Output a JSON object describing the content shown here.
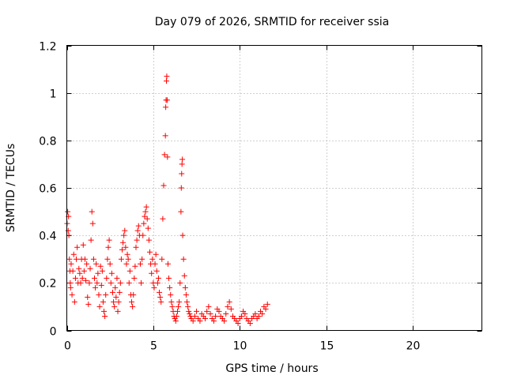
{
  "chart_data": {
    "type": "scatter",
    "title": "Day 079 of 2026, SRMTID for receiver ssia",
    "xlabel": "GPS time / hours",
    "ylabel": "SRMTID / TECUs",
    "xlim": [
      0,
      24
    ],
    "ylim": [
      0,
      1.2
    ],
    "xticks": [
      0,
      5,
      10,
      15,
      20
    ],
    "xtick_labels": [
      "0",
      "5",
      "10",
      "15",
      "20"
    ],
    "yticks": [
      0,
      0.2,
      0.4,
      0.6,
      0.8,
      1,
      1.2
    ],
    "ytick_labels": [
      "0",
      "0.2",
      "0.4",
      "0.6",
      "0.8",
      "1",
      "1.2"
    ],
    "grid": true,
    "marker": "plus",
    "color": "#ff0000",
    "series": [
      {
        "name": "SRMTID",
        "x": [
          0.02,
          0.05,
          0.08,
          0.1,
          0.12,
          0.15,
          0.18,
          0.2,
          0.22,
          0.25,
          0.3,
          0.35,
          0.4,
          0.45,
          0.5,
          0.55,
          0.6,
          0.65,
          0.7,
          0.75,
          0.8,
          0.85,
          0.9,
          0.95,
          1.0,
          1.05,
          1.1,
          1.15,
          1.2,
          1.25,
          1.3,
          1.35,
          1.4,
          1.45,
          1.5,
          1.55,
          1.6,
          1.65,
          1.7,
          1.75,
          1.8,
          1.85,
          1.9,
          1.95,
          2.0,
          2.05,
          2.1,
          2.15,
          2.2,
          2.25,
          2.3,
          2.35,
          2.4,
          2.45,
          2.5,
          2.55,
          2.6,
          2.65,
          2.7,
          2.75,
          2.8,
          2.85,
          2.9,
          2.95,
          3.0,
          3.05,
          3.1,
          3.15,
          3.2,
          3.25,
          3.3,
          3.35,
          3.4,
          3.45,
          3.5,
          3.55,
          3.6,
          3.65,
          3.7,
          3.75,
          3.8,
          3.85,
          3.9,
          3.95,
          4.0,
          4.05,
          4.1,
          4.15,
          4.2,
          4.25,
          4.3,
          4.35,
          4.4,
          4.45,
          4.5,
          4.55,
          4.6,
          4.65,
          4.7,
          4.75,
          4.8,
          4.85,
          4.9,
          4.95,
          5.0,
          5.05,
          5.1,
          5.15,
          5.2,
          5.25,
          5.3,
          5.35,
          5.4,
          5.45,
          5.5,
          5.55,
          5.6,
          5.65,
          5.7,
          5.72,
          5.74,
          5.76,
          5.78,
          5.8,
          5.82,
          5.85,
          5.9,
          5.95,
          6.0,
          6.05,
          6.1,
          6.15,
          6.2,
          6.25,
          6.3,
          6.35,
          6.4,
          6.45,
          6.5,
          6.55,
          6.6,
          6.62,
          6.64,
          6.66,
          6.68,
          6.7,
          6.75,
          6.8,
          6.85,
          6.9,
          6.95,
          7.0,
          7.05,
          7.1,
          7.15,
          7.2,
          7.3,
          7.4,
          7.5,
          7.6,
          7.7,
          7.8,
          7.9,
          8.0,
          8.1,
          8.2,
          8.3,
          8.4,
          8.5,
          8.6,
          8.7,
          8.8,
          8.9,
          9.0,
          9.1,
          9.2,
          9.3,
          9.4,
          9.5,
          9.6,
          9.7,
          9.8,
          9.9,
          10.0,
          10.1,
          10.2,
          10.3,
          10.4,
          10.5,
          10.6,
          10.7,
          10.8,
          10.9,
          11.0,
          11.1,
          11.2,
          11.3,
          11.4,
          11.5,
          11.6
        ],
        "y": [
          0.45,
          0.5,
          0.42,
          0.48,
          0.4,
          0.3,
          0.25,
          0.2,
          0.18,
          0.28,
          0.15,
          0.25,
          0.32,
          0.12,
          0.22,
          0.3,
          0.35,
          0.2,
          0.26,
          0.24,
          0.2,
          0.3,
          0.22,
          0.36,
          0.25,
          0.3,
          0.21,
          0.28,
          0.14,
          0.11,
          0.2,
          0.26,
          0.38,
          0.5,
          0.45,
          0.3,
          0.22,
          0.18,
          0.28,
          0.2,
          0.24,
          0.15,
          0.1,
          0.27,
          0.19,
          0.25,
          0.12,
          0.08,
          0.06,
          0.15,
          0.22,
          0.3,
          0.35,
          0.38,
          0.28,
          0.2,
          0.24,
          0.16,
          0.12,
          0.1,
          0.18,
          0.14,
          0.22,
          0.08,
          0.12,
          0.16,
          0.2,
          0.3,
          0.34,
          0.37,
          0.4,
          0.42,
          0.35,
          0.28,
          0.32,
          0.3,
          0.2,
          0.25,
          0.15,
          0.12,
          0.1,
          0.15,
          0.22,
          0.27,
          0.35,
          0.38,
          0.42,
          0.44,
          0.4,
          0.28,
          0.2,
          0.3,
          0.4,
          0.45,
          0.48,
          0.5,
          0.52,
          0.47,
          0.43,
          0.38,
          0.33,
          0.28,
          0.24,
          0.3,
          0.2,
          0.18,
          0.28,
          0.32,
          0.25,
          0.2,
          0.22,
          0.16,
          0.14,
          0.12,
          0.3,
          0.47,
          0.61,
          0.74,
          0.82,
          0.94,
          0.97,
          1.05,
          1.07,
          0.97,
          0.73,
          0.28,
          0.22,
          0.18,
          0.15,
          0.12,
          0.1,
          0.08,
          0.06,
          0.05,
          0.04,
          0.06,
          0.08,
          0.1,
          0.12,
          0.2,
          0.5,
          0.6,
          0.66,
          0.7,
          0.72,
          0.4,
          0.3,
          0.23,
          0.18,
          0.15,
          0.12,
          0.1,
          0.08,
          0.07,
          0.06,
          0.05,
          0.04,
          0.06,
          0.08,
          0.05,
          0.04,
          0.07,
          0.06,
          0.05,
          0.08,
          0.1,
          0.07,
          0.05,
          0.04,
          0.06,
          0.09,
          0.08,
          0.06,
          0.05,
          0.04,
          0.07,
          0.1,
          0.12,
          0.09,
          0.06,
          0.05,
          0.04,
          0.03,
          0.05,
          0.06,
          0.08,
          0.07,
          0.05,
          0.04,
          0.03,
          0.05,
          0.06,
          0.07,
          0.05,
          0.06,
          0.08,
          0.07,
          0.1,
          0.09,
          0.11
        ]
      }
    ]
  }
}
